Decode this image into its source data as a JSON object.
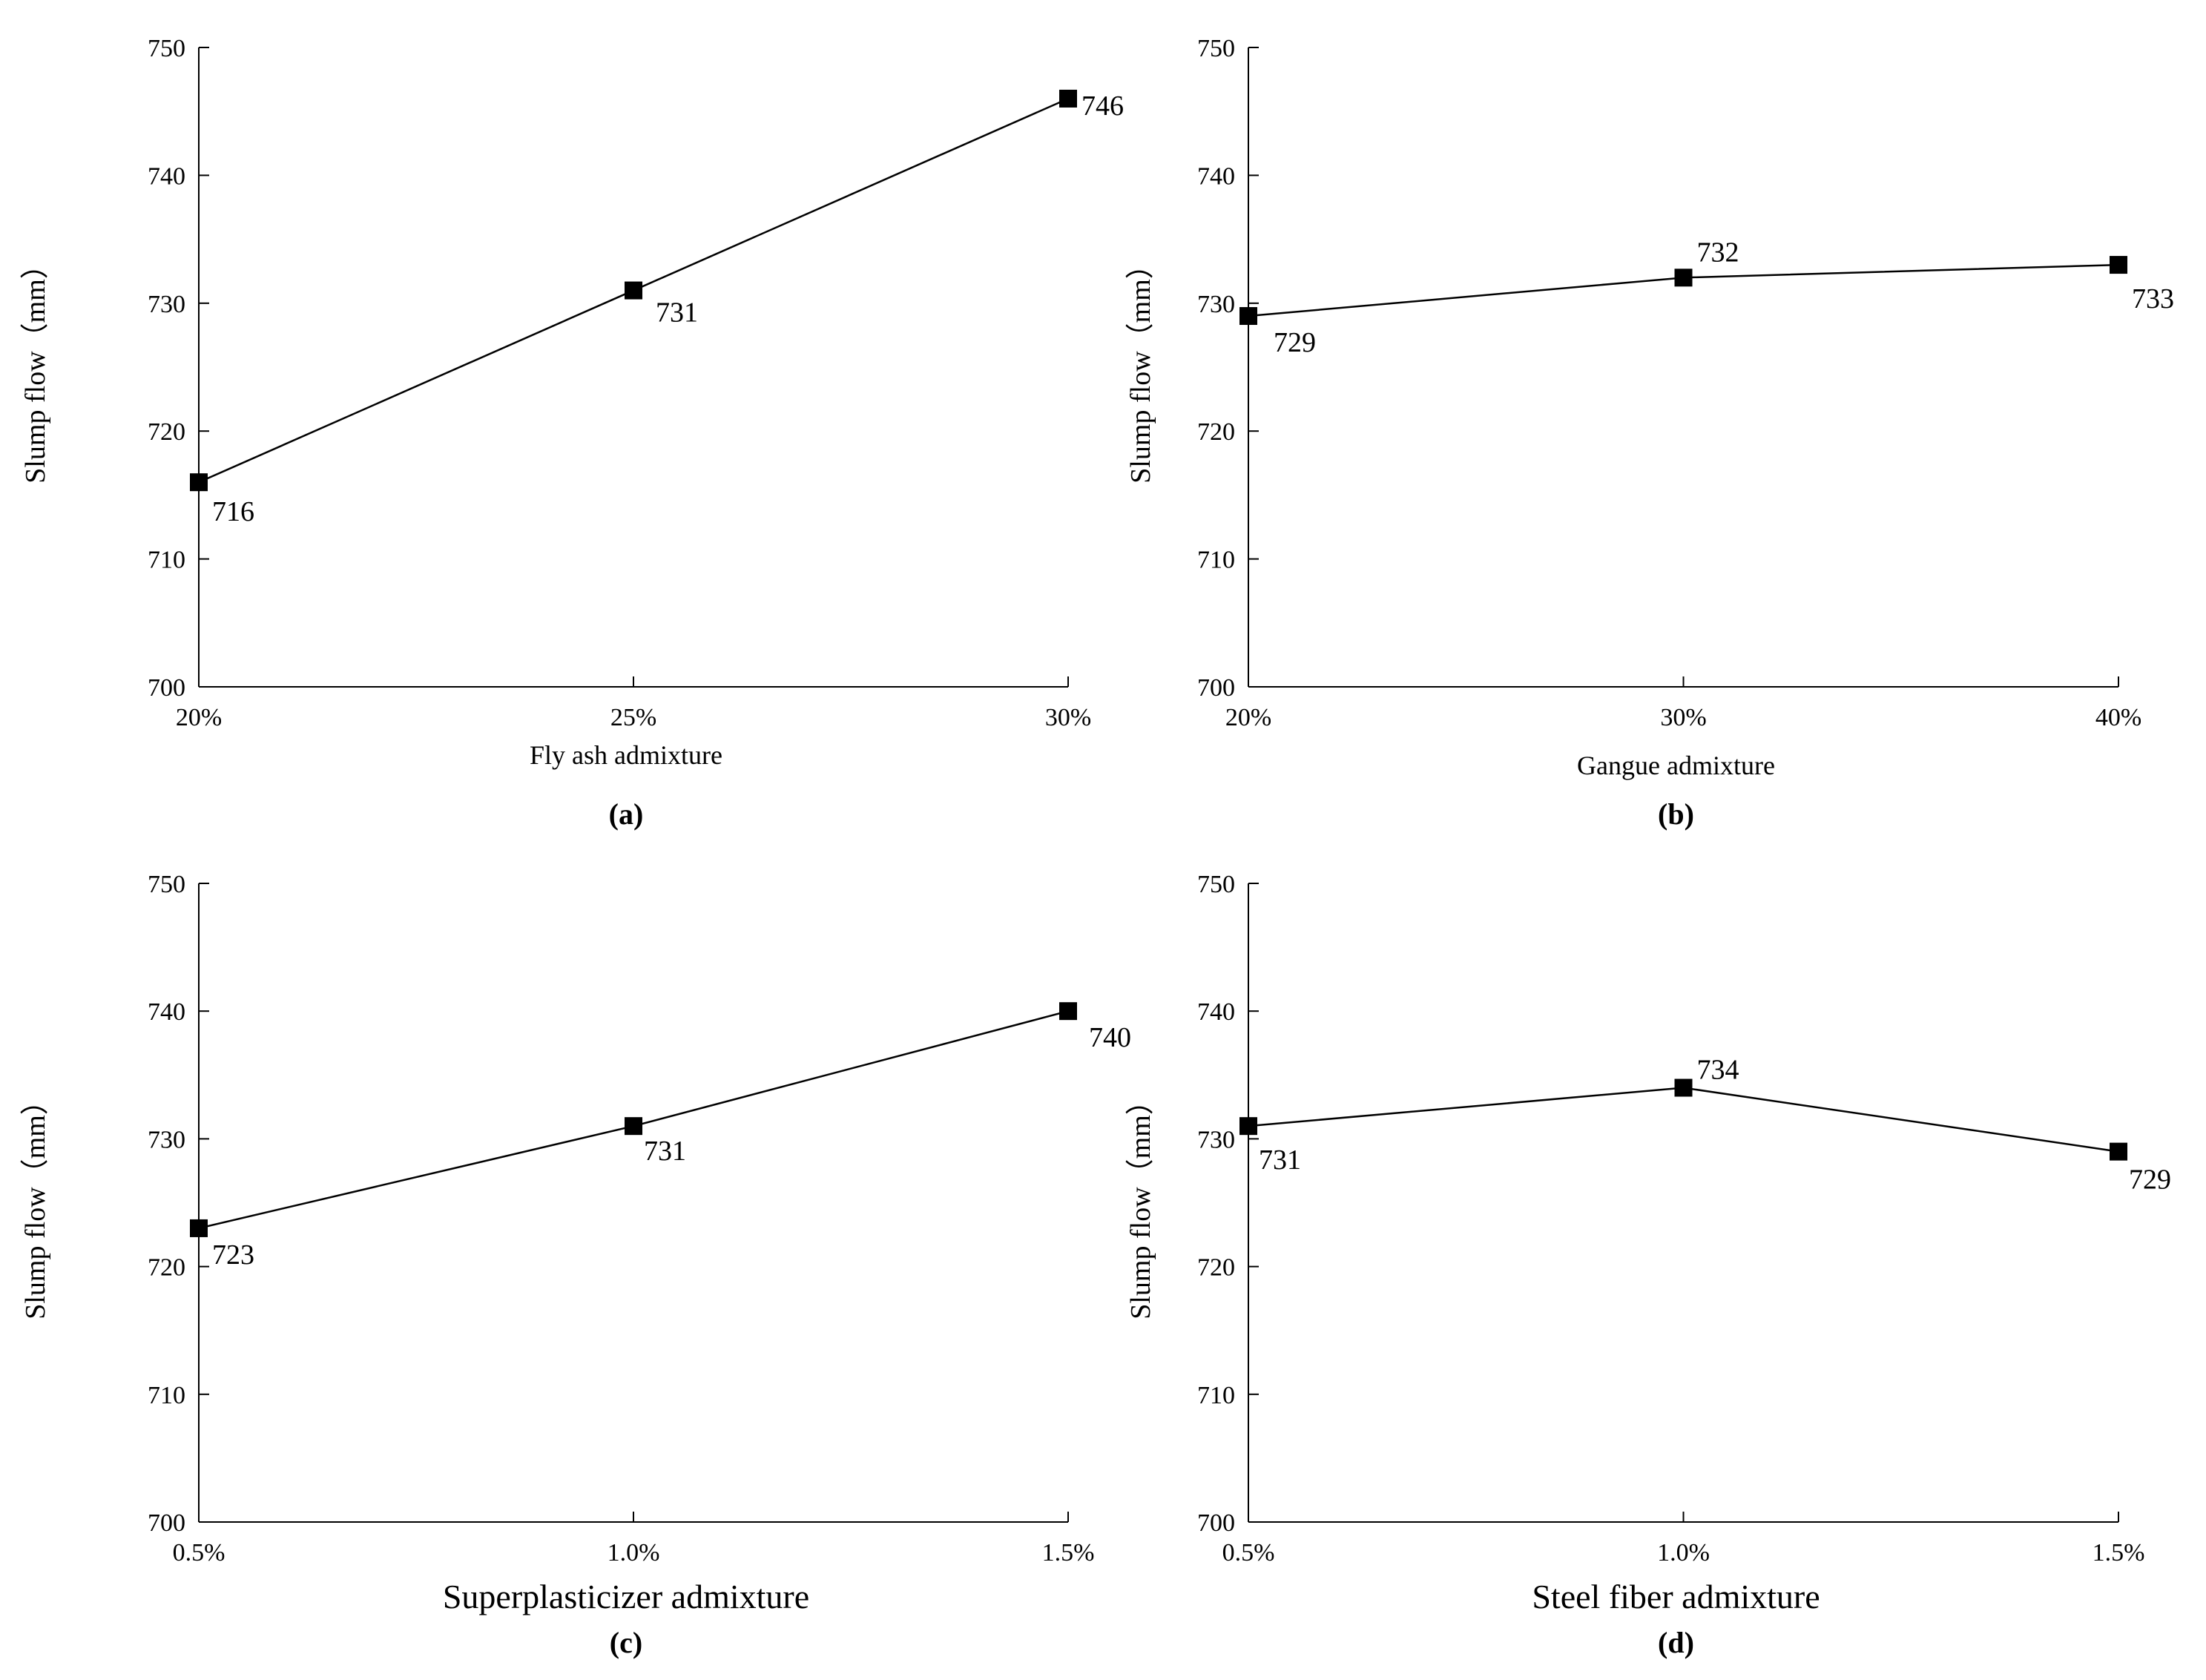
{
  "chart_data": [
    {
      "type": "line",
      "panel": "(a)",
      "categories": [
        "20%",
        "25%",
        "30%"
      ],
      "values": [
        716,
        731,
        746
      ],
      "xlabel": "Fly ash admixture",
      "ylabel": "Slump flow（mm）",
      "ylim": [
        700,
        750
      ],
      "yticks": [
        "700",
        "710",
        "720",
        "730",
        "740",
        "750"
      ],
      "data_labels": [
        "716",
        "731",
        "746"
      ],
      "marker": "square",
      "color": "#000000"
    },
    {
      "type": "line",
      "panel": "(b)",
      "categories": [
        "20%",
        "30%",
        "40%"
      ],
      "values": [
        729,
        732,
        733
      ],
      "xlabel": "Gangue admixture",
      "ylabel": "Slump flow（mm）",
      "ylim": [
        700,
        750
      ],
      "yticks": [
        "700",
        "710",
        "720",
        "730",
        "740",
        "750"
      ],
      "data_labels": [
        "729",
        "732",
        "733"
      ],
      "marker": "square",
      "color": "#000000"
    },
    {
      "type": "line",
      "panel": "(c)",
      "categories": [
        "0.5%",
        "1.0%",
        "1.5%"
      ],
      "values": [
        723,
        731,
        740
      ],
      "xlabel": "Superplasticizer admixture",
      "ylabel": "Slump flow（mm）",
      "ylim": [
        700,
        750
      ],
      "yticks": [
        "700",
        "710",
        "720",
        "730",
        "740",
        "750"
      ],
      "data_labels": [
        "723",
        "731",
        "740"
      ],
      "marker": "square",
      "color": "#000000"
    },
    {
      "type": "line",
      "panel": "(d)",
      "categories": [
        "0.5%",
        "1.0%",
        "1.5%"
      ],
      "values": [
        731,
        734,
        729
      ],
      "xlabel": "Steel fiber admixture",
      "ylabel": "Slump flow（mm）",
      "ylim": [
        700,
        750
      ],
      "yticks": [
        "700",
        "710",
        "720",
        "730",
        "740",
        "750"
      ],
      "data_labels": [
        "731",
        "734",
        "729"
      ],
      "marker": "square",
      "color": "#000000"
    }
  ]
}
